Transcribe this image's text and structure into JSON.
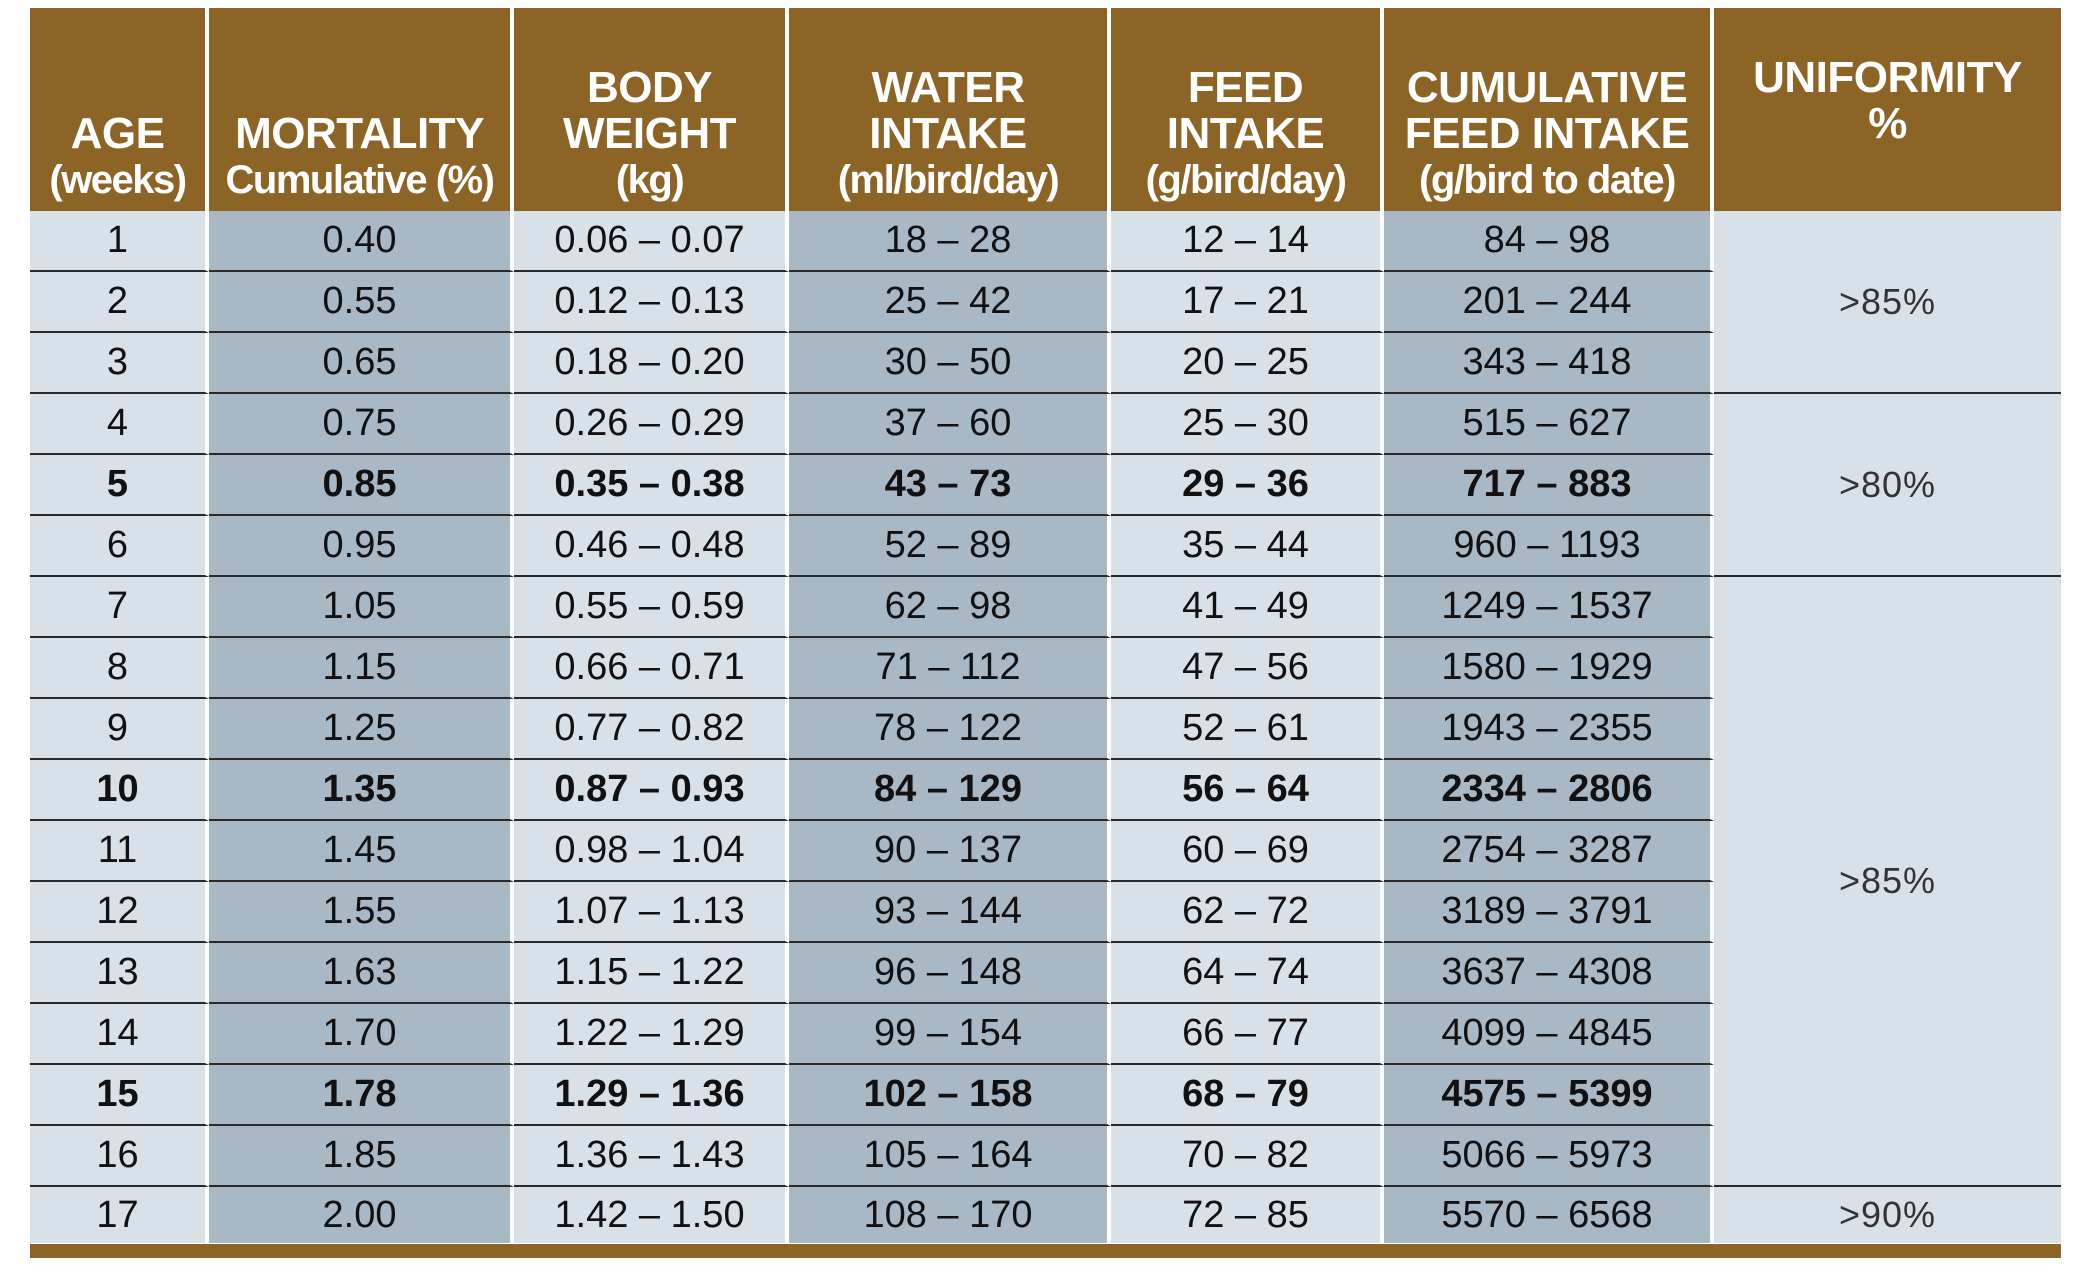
{
  "headers": [
    {
      "main": "AGE",
      "sub": "(weeks)"
    },
    {
      "main": "MORTALITY",
      "sub": "Cumulative (%)"
    },
    {
      "main": "BODY WEIGHT",
      "sub": "(kg)"
    },
    {
      "main": "WATER INTAKE",
      "sub": "(ml/bird/day)"
    },
    {
      "main": "FEED INTAKE",
      "sub": "(g/bird/day)"
    },
    {
      "main": "CUMULATIVE FEED INTAKE",
      "sub": "(g/bird to date)"
    },
    {
      "main": "UNIFORMITY",
      "sub": "%"
    }
  ],
  "rows": [
    {
      "age": "1",
      "mortality": "0.40",
      "body_weight": "0.06 – 0.07",
      "water": "18 – 28",
      "feed": "12 – 14",
      "cumulative": "84 – 98",
      "bold": false
    },
    {
      "age": "2",
      "mortality": "0.55",
      "body_weight": "0.12 – 0.13",
      "water": "25 – 42",
      "feed": "17 – 21",
      "cumulative": "201 – 244",
      "bold": false
    },
    {
      "age": "3",
      "mortality": "0.65",
      "body_weight": "0.18 – 0.20",
      "water": "30 – 50",
      "feed": "20 – 25",
      "cumulative": "343 – 418",
      "bold": false
    },
    {
      "age": "4",
      "mortality": "0.75",
      "body_weight": "0.26 – 0.29",
      "water": "37 – 60",
      "feed": "25 – 30",
      "cumulative": "515 – 627",
      "bold": false
    },
    {
      "age": "5",
      "mortality": "0.85",
      "body_weight": "0.35 – 0.38",
      "water": "43 – 73",
      "feed": "29 – 36",
      "cumulative": "717 – 883",
      "bold": true
    },
    {
      "age": "6",
      "mortality": "0.95",
      "body_weight": "0.46 – 0.48",
      "water": "52 – 89",
      "feed": "35 – 44",
      "cumulative": "960 – 1193",
      "bold": false
    },
    {
      "age": "7",
      "mortality": "1.05",
      "body_weight": "0.55 – 0.59",
      "water": "62 – 98",
      "feed": "41 – 49",
      "cumulative": "1249 – 1537",
      "bold": false
    },
    {
      "age": "8",
      "mortality": "1.15",
      "body_weight": "0.66 – 0.71",
      "water": "71 – 112",
      "feed": "47 – 56",
      "cumulative": "1580 – 1929",
      "bold": false
    },
    {
      "age": "9",
      "mortality": "1.25",
      "body_weight": "0.77 – 0.82",
      "water": "78 – 122",
      "feed": "52 – 61",
      "cumulative": "1943 – 2355",
      "bold": false
    },
    {
      "age": "10",
      "mortality": "1.35",
      "body_weight": "0.87 – 0.93",
      "water": "84 – 129",
      "feed": "56 – 64",
      "cumulative": "2334 – 2806",
      "bold": true
    },
    {
      "age": "11",
      "mortality": "1.45",
      "body_weight": "0.98 – 1.04",
      "water": "90 – 137",
      "feed": "60 – 69",
      "cumulative": "2754 – 3287",
      "bold": false
    },
    {
      "age": "12",
      "mortality": "1.55",
      "body_weight": "1.07 – 1.13",
      "water": "93 – 144",
      "feed": "62 – 72",
      "cumulative": "3189 – 3791",
      "bold": false
    },
    {
      "age": "13",
      "mortality": "1.63",
      "body_weight": "1.15 – 1.22",
      "water": "96 – 148",
      "feed": "64 – 74",
      "cumulative": "3637 – 4308",
      "bold": false
    },
    {
      "age": "14",
      "mortality": "1.70",
      "body_weight": "1.22 – 1.29",
      "water": "99 – 154",
      "feed": "66 – 77",
      "cumulative": "4099 – 4845",
      "bold": false
    },
    {
      "age": "15",
      "mortality": "1.78",
      "body_weight": "1.29 – 1.36",
      "water": "102 – 158",
      "feed": "68 – 79",
      "cumulative": "4575 – 5399",
      "bold": true
    },
    {
      "age": "16",
      "mortality": "1.85",
      "body_weight": "1.36 – 1.43",
      "water": "105 – 164",
      "feed": "70 – 82",
      "cumulative": "5066 – 5973",
      "bold": false
    },
    {
      "age": "17",
      "mortality": "2.00",
      "body_weight": "1.42 – 1.50",
      "water": "108 – 170",
      "feed": "72 – 85",
      "cumulative": "5570 – 6568",
      "bold": false
    }
  ],
  "uniformity": [
    {
      "label": ">85%",
      "rowspan": 3
    },
    {
      "label": ">80%",
      "rowspan": 3
    },
    {
      "label": ">85%",
      "rowspan": 10
    },
    {
      "label": ">90%",
      "rowspan": 1
    }
  ],
  "colors": {
    "header": "#8b6426",
    "light_cell": "#d9e1e8",
    "dark_cell": "#a9b8c5"
  }
}
